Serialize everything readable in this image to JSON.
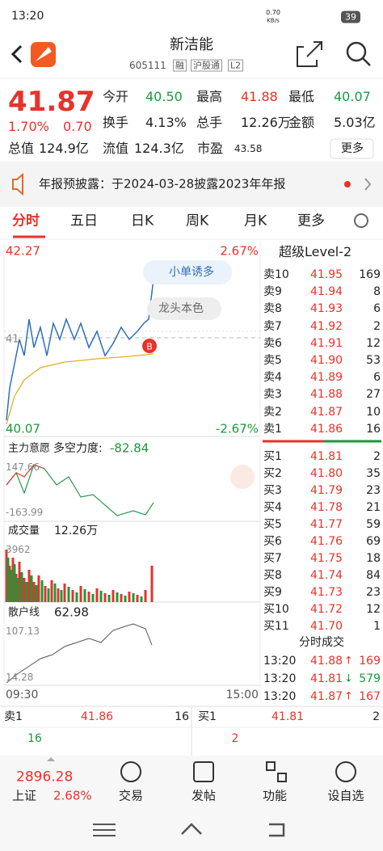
{
  "status": {
    "time": "13:20",
    "speed": "0.70",
    "speed_unit": "KB/s",
    "battery": "39"
  },
  "header": {
    "title": "新洁能",
    "code": "605111",
    "tags": [
      "融",
      "沪股通",
      "L2"
    ]
  },
  "quote": {
    "price": "41.87",
    "change_pct": "1.70%",
    "change": "0.70",
    "fields": [
      {
        "label": "今开",
        "value": "40.50"
      },
      {
        "label": "最高",
        "value": "41.88"
      },
      {
        "label": "最低",
        "value": "40.07"
      },
      {
        "label": "换手",
        "value": "4.13%"
      },
      {
        "label": "总手",
        "value": "12.26万"
      },
      {
        "label": "金额",
        "value": "5.03亿"
      },
      {
        "label": "总值",
        "value": "124.9亿"
      },
      {
        "label": "流值",
        "value": "124.3亿"
      },
      {
        "label": "市盈",
        "value": "43.58"
      }
    ],
    "more": "更多"
  },
  "notice": "年报预披露：于2024-03-28披露2023年年报",
  "tabs": [
    "分时",
    "五日",
    "日K",
    "周K",
    "月K",
    "更多"
  ],
  "chart": {
    "top_left": "42.27",
    "top_right": "2.67%",
    "bottom_left": "40.07",
    "bottom_right": "-2.67%",
    "mid_left": "41",
    "badge1": "小单诱多",
    "badge2": "龙头本色",
    "marker": "B",
    "x_start": "09:30",
    "x_end": "15:00"
  },
  "sub1": {
    "label": "主力意愿",
    "name": "多空力度:",
    "value": "-82.84",
    "top": "147.66",
    "bottom": "-163.99"
  },
  "sub2": {
    "label": "成交量",
    "value": "12.26万",
    "top": "3962"
  },
  "sub3": {
    "label": "散户线",
    "value": "62.98",
    "top": "107.13",
    "bottom": "14.28"
  },
  "orderbook": {
    "title": "超级Level-2",
    "asks": [
      {
        "label": "卖10",
        "price": "41.95",
        "volume": "169"
      },
      {
        "label": "卖9",
        "price": "41.94",
        "volume": "8"
      },
      {
        "label": "卖8",
        "price": "41.93",
        "volume": "6"
      },
      {
        "label": "卖7",
        "price": "41.92",
        "volume": "2"
      },
      {
        "label": "卖6",
        "price": "41.91",
        "volume": "12"
      },
      {
        "label": "卖5",
        "price": "41.90",
        "volume": "53"
      },
      {
        "label": "卖4",
        "price": "41.89",
        "volume": "6"
      },
      {
        "label": "卖3",
        "price": "41.88",
        "volume": "27"
      },
      {
        "label": "卖2",
        "price": "41.87",
        "volume": "10"
      },
      {
        "label": "卖1",
        "price": "41.86",
        "volume": "16"
      }
    ],
    "bids": [
      {
        "label": "买1",
        "price": "41.81",
        "volume": "2"
      },
      {
        "label": "买2",
        "price": "41.80",
        "volume": "35"
      },
      {
        "label": "买3",
        "price": "41.79",
        "volume": "23"
      },
      {
        "label": "买4",
        "price": "41.78",
        "volume": "21"
      },
      {
        "label": "买5",
        "price": "41.77",
        "volume": "59"
      },
      {
        "label": "买6",
        "price": "41.76",
        "volume": "69"
      },
      {
        "label": "买7",
        "price": "41.75",
        "volume": "18"
      },
      {
        "label": "买8",
        "price": "41.74",
        "volume": "84"
      },
      {
        "label": "买9",
        "price": "41.73",
        "volume": "23"
      },
      {
        "label": "买10",
        "price": "41.72",
        "volume": "12"
      },
      {
        "label": "买11",
        "price": "41.70",
        "volume": "1"
      }
    ]
  },
  "trades": {
    "title": "分时成交",
    "rows": [
      {
        "time": "13:20",
        "price": "41.88",
        "dir": "↑",
        "volume": "169"
      },
      {
        "time": "13:20",
        "price": "41.81",
        "dir": "↓",
        "volume": "579"
      },
      {
        "time": "13:20",
        "price": "41.87",
        "dir": "↑",
        "volume": "167"
      }
    ]
  },
  "level1": {
    "ask_label": "卖1",
    "ask_price": "41.86",
    "ask_volume": "16",
    "bid_label": "买1",
    "bid_price": "41.81",
    "bid_volume": "2",
    "ask_count": "16",
    "bid_count": "2"
  },
  "footer": {
    "index": "2896.28",
    "index_name": "上证",
    "index_pct": "2.68%",
    "nav": [
      "交易",
      "发帖",
      "功能",
      "设自选"
    ]
  }
}
